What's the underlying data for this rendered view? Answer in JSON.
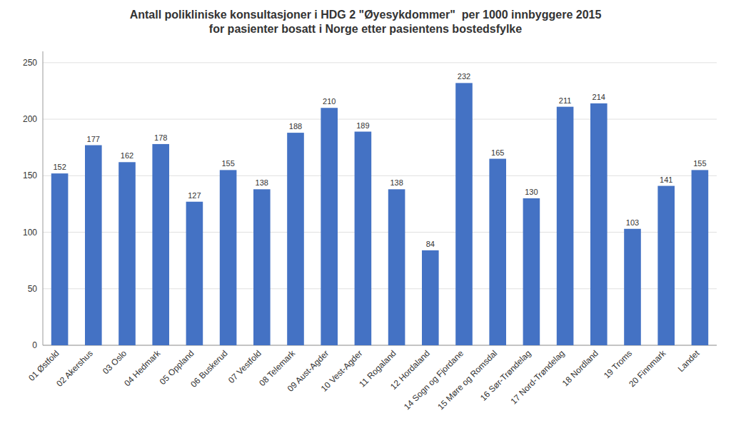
{
  "chart_data": {
    "type": "bar",
    "title": "Antall polikliniske konsultasjoner i HDG 2 \"Øyesykdommer\"  per 1000 innbyggere 2015\nfor pasienter bosatt i Norge etter pasientens bostedsfylke",
    "categories": [
      "01 Østfold",
      "02 Akershus",
      "03 Oslo",
      "04 Hedmark",
      "05 Oppland",
      "06 Buskerud",
      "07 Vestfold",
      "08 Telemark",
      "09 Aust-Agder",
      "10 Vest-Agder",
      "11 Rogaland",
      "12 Hordaland",
      "14 Sogn og Fjordane",
      "15 Møre og Romsdal",
      "16 Sør-Trøndelag",
      "17 Nord-Trøndelag",
      "18 Nordland",
      "19 Troms",
      "20 Finnmark",
      "Landet"
    ],
    "values": [
      152,
      177,
      162,
      178,
      127,
      155,
      138,
      188,
      210,
      189,
      138,
      84,
      232,
      165,
      130,
      211,
      214,
      103,
      141,
      155
    ],
    "color": "#4472C4",
    "ylim": [
      0,
      260
    ],
    "yticks": [
      0,
      50,
      100,
      150,
      200,
      250
    ],
    "grid": true,
    "data_labels": true
  }
}
